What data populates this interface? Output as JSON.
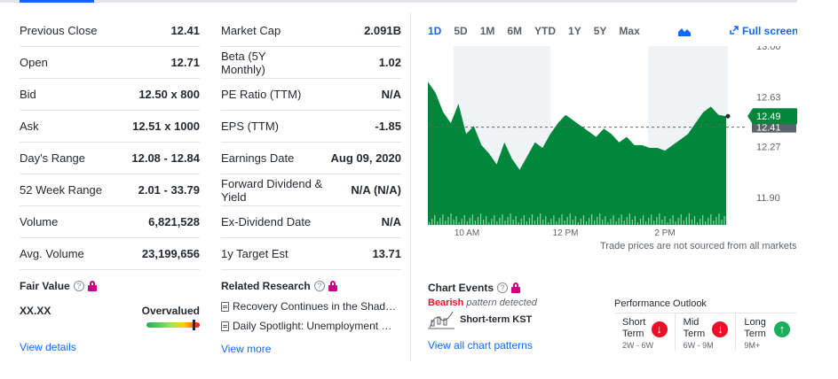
{
  "stats_left": [
    {
      "label": "Previous Close",
      "value": "12.41"
    },
    {
      "label": "Open",
      "value": "12.71"
    },
    {
      "label": "Bid",
      "value": "12.50 x 800"
    },
    {
      "label": "Ask",
      "value": "12.51 x 1000"
    },
    {
      "label": "Day's Range",
      "value": "12.08 - 12.84"
    },
    {
      "label": "52 Week Range",
      "value": "2.01 - 33.79"
    },
    {
      "label": "Volume",
      "value": "6,821,528"
    },
    {
      "label": "Avg. Volume",
      "value": "23,199,656"
    }
  ],
  "stats_right": [
    {
      "label": "Market Cap",
      "value": "2.091B"
    },
    {
      "label": "Beta (5Y Monthly)",
      "value": "1.02"
    },
    {
      "label": "PE Ratio (TTM)",
      "value": "N/A"
    },
    {
      "label": "EPS (TTM)",
      "value": "-1.85"
    },
    {
      "label": "Earnings Date",
      "value": "Aug 09, 2020"
    },
    {
      "label": "Forward Dividend & Yield",
      "value": "N/A (N/A)"
    },
    {
      "label": "Ex-Dividend Date",
      "value": "N/A"
    },
    {
      "label": "1y Target Est",
      "value": "13.71"
    }
  ],
  "fair_value": {
    "title": "Fair Value",
    "value": "XX.XX",
    "verdict": "Overvalued",
    "link": "View details"
  },
  "related_research": {
    "title": "Related Research",
    "items": [
      "Recovery Continues in the Shad…",
      "Daily Spotlight: Unemployment …"
    ],
    "link": "View more"
  },
  "chart_controls": {
    "ranges": [
      "1D",
      "5D",
      "1M",
      "6M",
      "YTD",
      "1Y",
      "5Y",
      "Max"
    ],
    "active_range": "1D",
    "fullscreen": "Full screen",
    "note": "Trade prices are not sourced from all markets"
  },
  "chart_data": {
    "type": "area",
    "x_ticks": [
      "10 AM",
      "12 PM",
      "2 PM"
    ],
    "y_ticks": [
      "13.00",
      "12.63",
      "12.27",
      "11.90"
    ],
    "y_range": [
      11.7,
      13.0
    ],
    "previous_close": 12.41,
    "current_price": 12.49,
    "previous_close_label": "12.41",
    "current_label": "12.49",
    "accent": "#00873c",
    "series": [
      12.74,
      12.66,
      12.52,
      12.44,
      12.58,
      12.36,
      12.42,
      12.28,
      12.22,
      12.14,
      12.3,
      12.18,
      12.1,
      12.2,
      12.3,
      12.26,
      12.36,
      12.44,
      12.5,
      12.46,
      12.42,
      12.38,
      12.34,
      12.4,
      12.36,
      12.3,
      12.34,
      12.28,
      12.28,
      12.26,
      12.26,
      12.24,
      12.28,
      12.32,
      12.36,
      12.44,
      12.52,
      12.56,
      12.5,
      12.49
    ]
  },
  "chart_events": {
    "title": "Chart Events",
    "pattern_type": "Bearish",
    "pattern_text": "pattern detected",
    "pattern_name": "Short-term KST",
    "link": "View all chart patterns"
  },
  "performance": {
    "title": "Performance Outlook",
    "items": [
      {
        "term1": "Short",
        "term2": "Term",
        "range": "2W - 6W",
        "direction": "down"
      },
      {
        "term1": "Mid",
        "term2": "Term",
        "range": "6W - 9M",
        "direction": "down"
      },
      {
        "term1": "Long",
        "term2": "Term",
        "range": "9M+",
        "direction": "up"
      }
    ]
  }
}
